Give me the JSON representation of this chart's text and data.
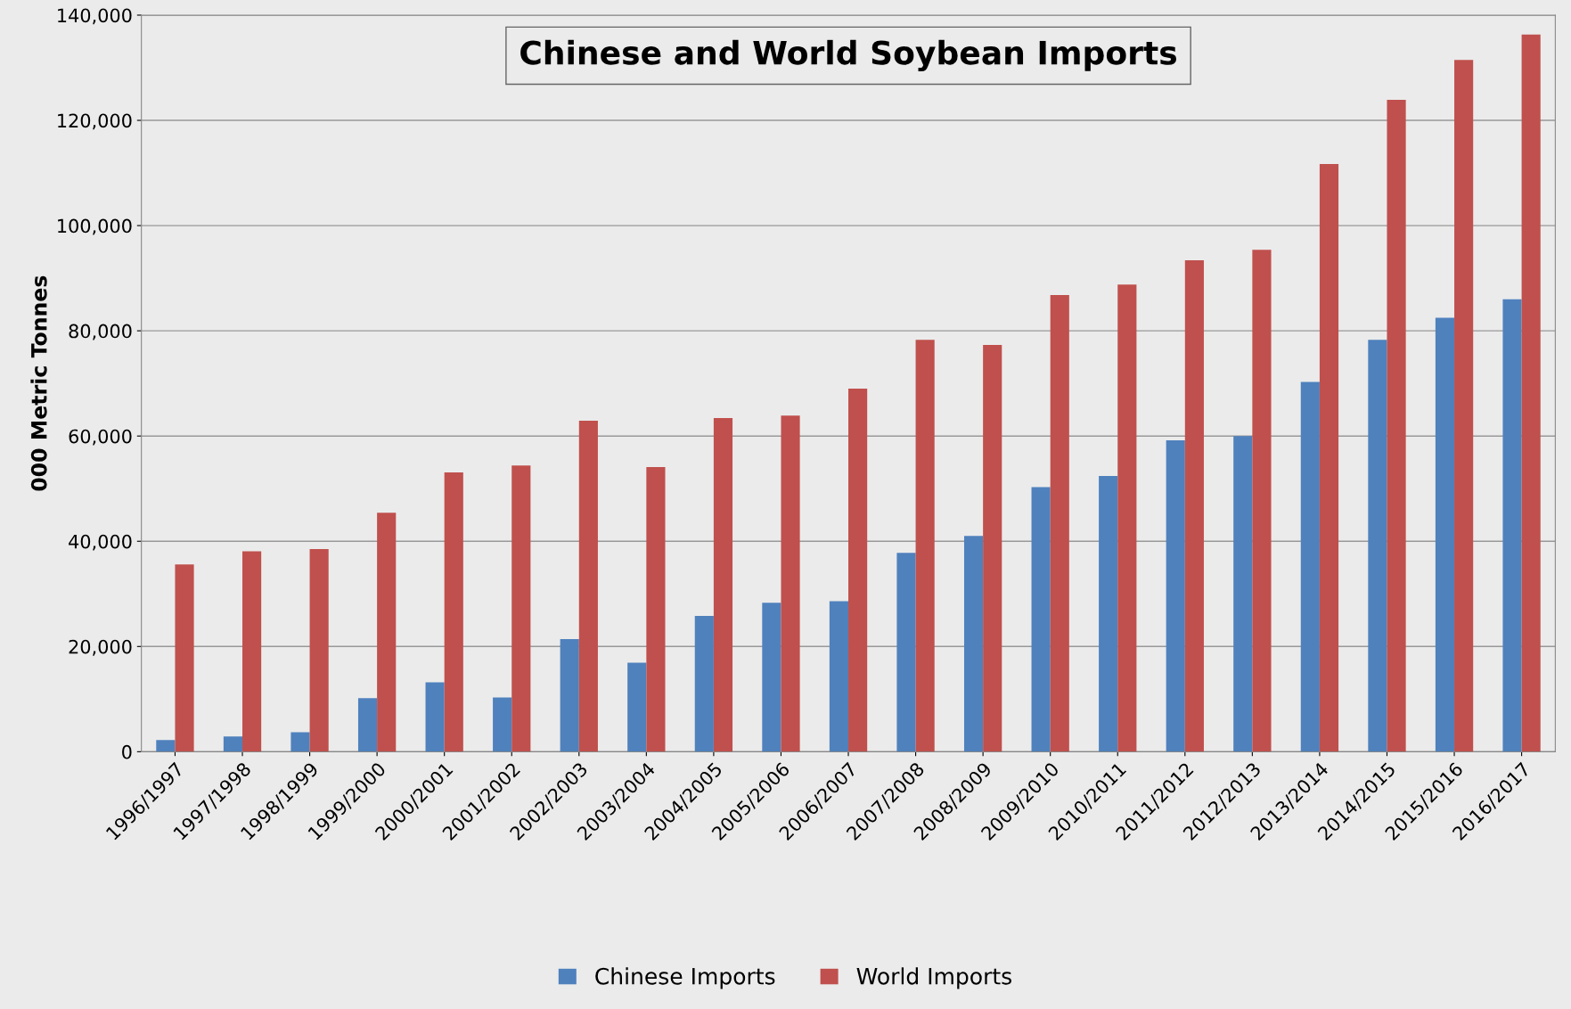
{
  "chart_data": {
    "type": "bar",
    "title": "Chinese and World Soybean Imports",
    "ylabel": "000 Metric Tonnes",
    "categories": [
      "1996/1997",
      "1997/1998",
      "1998/1999",
      "1999/2000",
      "2000/2001",
      "2001/2002",
      "2002/2003",
      "2003/2004",
      "2004/2005",
      "2005/2006",
      "2006/2007",
      "2007/2008",
      "2008/2009",
      "2009/2010",
      "2010/2011",
      "2011/2012",
      "2012/2013",
      "2013/2014",
      "2014/2015",
      "2015/2016",
      "2016/2017"
    ],
    "series": [
      {
        "name": "Chinese Imports",
        "color": "#4f81bd",
        "values": [
          2200,
          2900,
          3700,
          10200,
          13200,
          10300,
          21400,
          16900,
          25800,
          28300,
          28600,
          37800,
          41000,
          50300,
          52400,
          59200,
          60000,
          70300,
          78300,
          82500,
          86000
        ]
      },
      {
        "name": "World Imports",
        "color": "#c0504d",
        "values": [
          35600,
          38100,
          38500,
          45400,
          53100,
          54400,
          62900,
          54100,
          63400,
          63900,
          69000,
          78300,
          77300,
          86800,
          88800,
          93400,
          95400,
          111700,
          123900,
          131500,
          136300
        ]
      }
    ],
    "ylim": [
      0,
      140000
    ],
    "yticks": [
      {
        "value": 0,
        "label": "0"
      },
      {
        "value": 20000,
        "label": "20,000"
      },
      {
        "value": 40000,
        "label": "40,000"
      },
      {
        "value": 60000,
        "label": "60,000"
      },
      {
        "value": 80000,
        "label": "80,000"
      },
      {
        "value": 100000,
        "label": "100,000"
      },
      {
        "value": 120000,
        "label": "120,000"
      },
      {
        "value": 140000,
        "label": "140,000"
      }
    ],
    "grid": "y",
    "legend": "bottom"
  }
}
